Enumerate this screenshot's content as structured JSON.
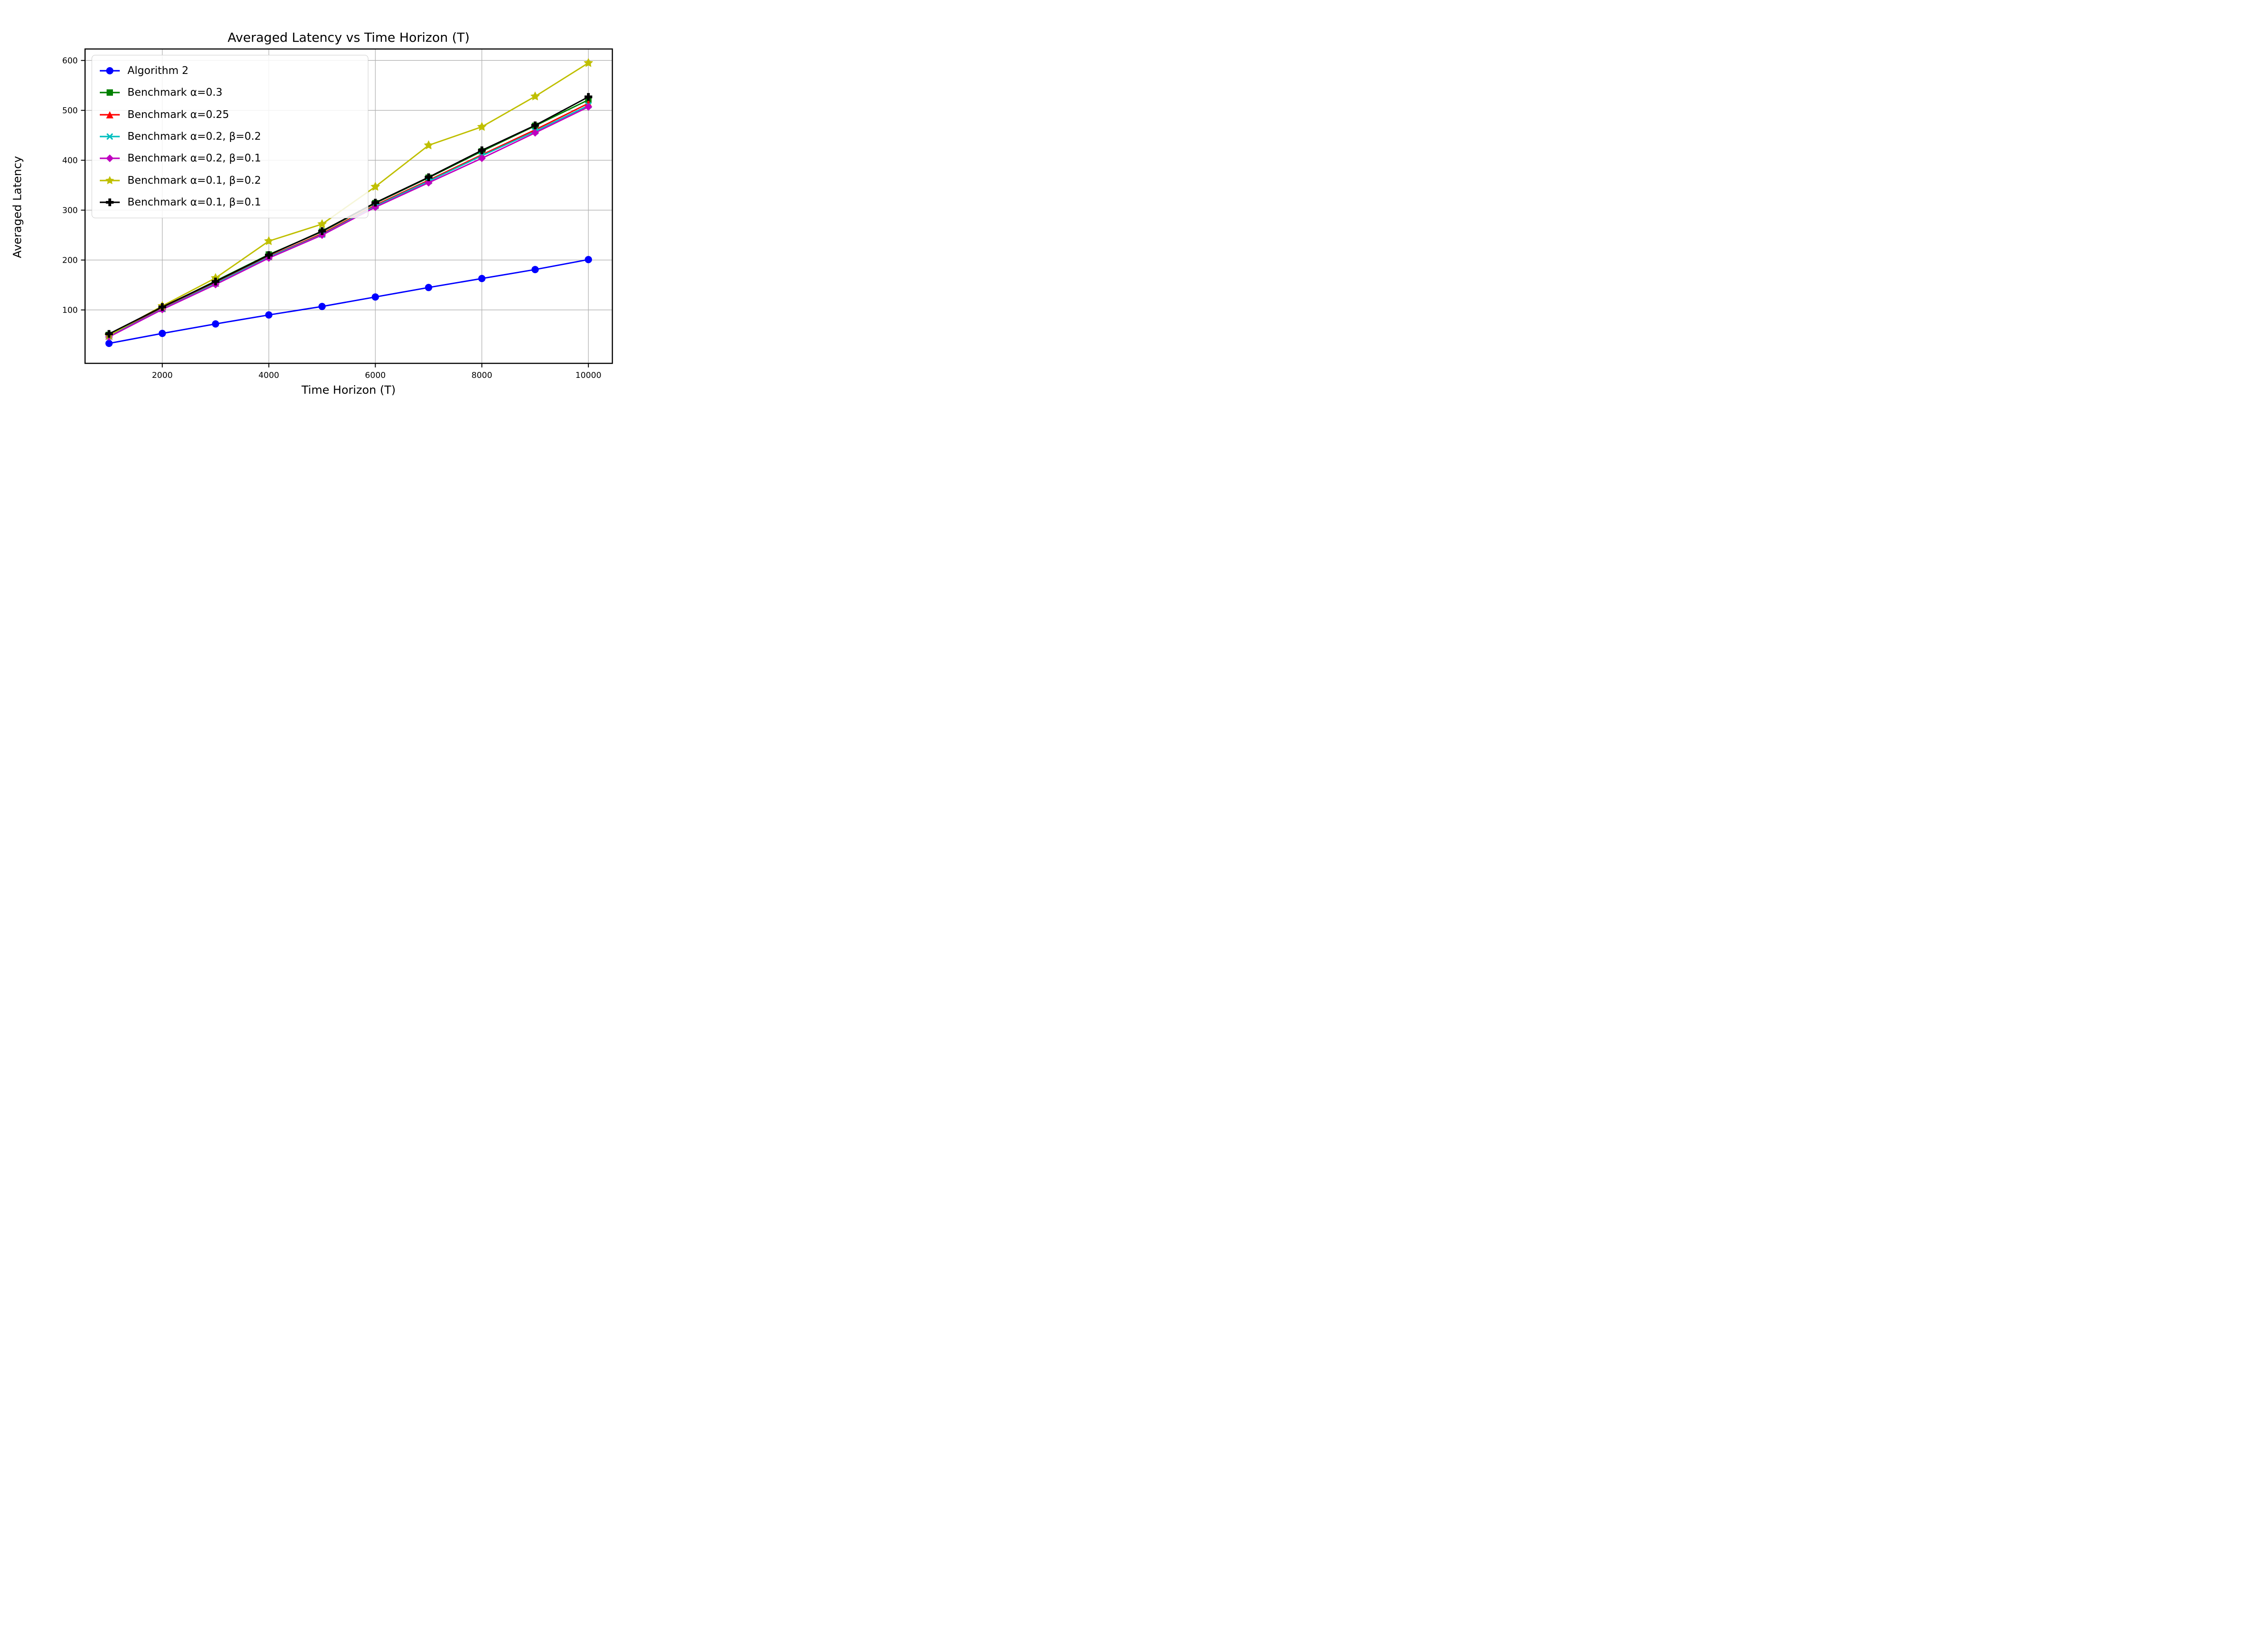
{
  "figure": {
    "title": "Averaged Latency vs Time Horizon (T)",
    "xlabel": "Time Horizon (T)",
    "ylabel": "Averaged Latency"
  },
  "chart_data": {
    "type": "line",
    "title": "Averaged Latency vs Time Horizon (T)",
    "xlabel": "Time Horizon (T)",
    "ylabel": "Averaged Latency",
    "x": [
      1000,
      2000,
      3000,
      4000,
      5000,
      6000,
      7000,
      8000,
      9000,
      10000
    ],
    "xlim": [
      550,
      10450
    ],
    "ylim": [
      -7,
      623
    ],
    "xticks": [
      2000,
      4000,
      6000,
      8000,
      10000
    ],
    "yticks": [
      100,
      200,
      300,
      400,
      500,
      600
    ],
    "grid": true,
    "grid_color": "#b0b0b0",
    "legend_position": "upper-left",
    "series": [
      {
        "name": "Algorithm 2",
        "color": "#0000ff",
        "marker": "circle",
        "marker_size": 8,
        "values": [
          33,
          53,
          72,
          90,
          107,
          126,
          145,
          163,
          181,
          201
        ]
      },
      {
        "name": "Benchmark α=0.3",
        "color": "#008000",
        "marker": "square",
        "marker_size": 7,
        "values": [
          50,
          105,
          158,
          211,
          257,
          314,
          365,
          418,
          469,
          521
        ]
      },
      {
        "name": "Benchmark α=0.25",
        "color": "#ff0000",
        "marker": "triangle",
        "marker_size": 8,
        "values": [
          48,
          103,
          154,
          207,
          253,
          310,
          360,
          411,
          461,
          514
        ]
      },
      {
        "name": "Benchmark α=0.2, β=0.2",
        "color": "#00bfbf",
        "marker": "x",
        "marker_size": 8,
        "values": [
          47,
          102,
          153,
          206,
          251,
          308,
          358,
          409,
          458,
          510
        ]
      },
      {
        "name": "Benchmark α=0.2, β=0.1",
        "color": "#bf00bf",
        "marker": "diamond",
        "marker_size": 8.5,
        "values": [
          46,
          101,
          151,
          204,
          250,
          306,
          355,
          404,
          455,
          507
        ]
      },
      {
        "name": "Benchmark α=0.1, β=0.2",
        "color": "#bfbf00",
        "marker": "star",
        "marker_size": 11,
        "values": [
          49,
          108,
          164,
          238,
          272,
          347,
          430,
          467,
          528,
          595
        ]
      },
      {
        "name": "Benchmark α=0.1, β=0.1",
        "color": "#000000",
        "marker": "plus",
        "marker_size": 8.5,
        "values": [
          52,
          106,
          157,
          210,
          258,
          315,
          366,
          420,
          470,
          527
        ]
      }
    ]
  }
}
